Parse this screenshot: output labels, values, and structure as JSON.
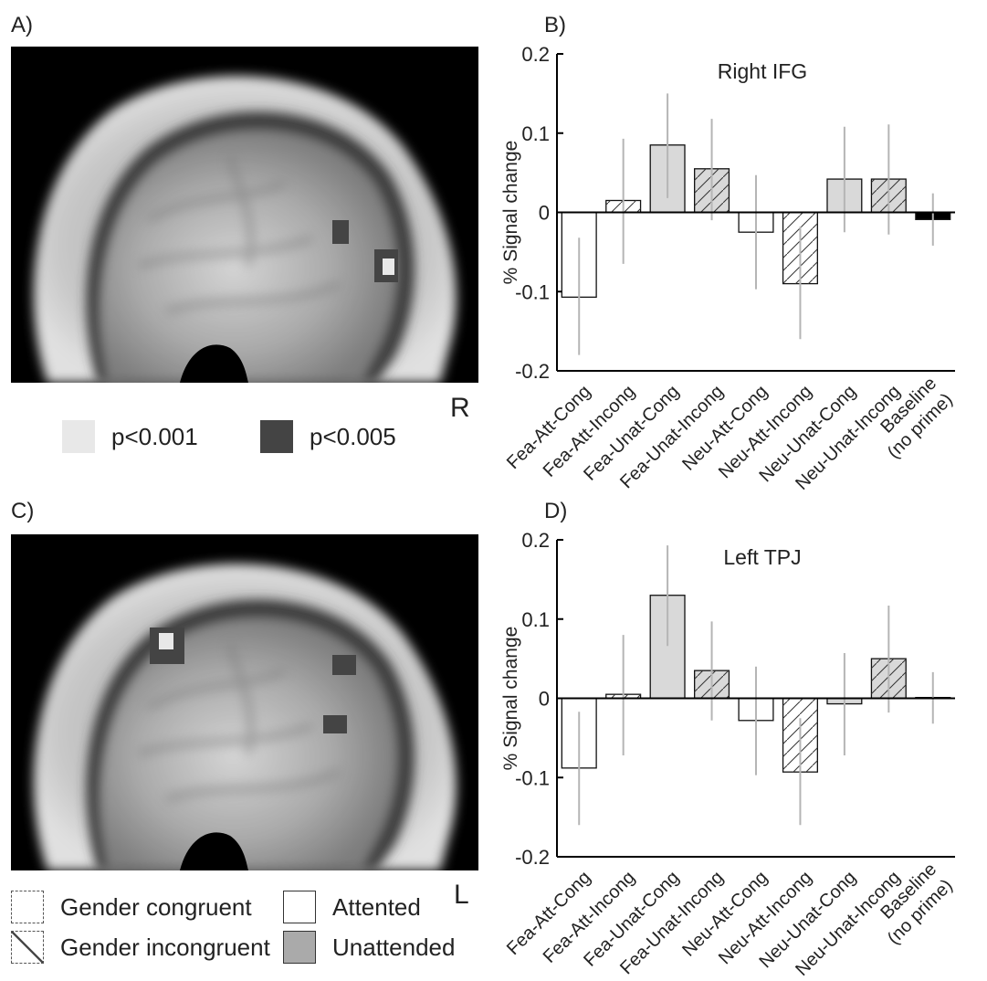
{
  "panels": {
    "a": "A)",
    "b": "B)",
    "c": "C)",
    "d": "D)"
  },
  "brain_top": {
    "side_label": "R",
    "legend": [
      {
        "label": "p<0.001",
        "color": "#e8e8e8"
      },
      {
        "label": "p<0.005",
        "color": "#444444"
      }
    ]
  },
  "brain_bottom": {
    "side_label": "L"
  },
  "legend": {
    "congruent": "Gender congruent",
    "incongruent": "Gender incongruent",
    "attended": "Attented",
    "unattended": "Unattended"
  },
  "colors": {
    "attended": "#ffffff",
    "unattended": "#d9d9d9",
    "baseline": "#000000",
    "error": "#b5b5b5"
  },
  "chart_data": [
    {
      "type": "bar",
      "title": "Right IFG",
      "ylabel": "% Signal change",
      "ylim": [
        -0.2,
        0.2
      ],
      "yticks": [
        "0.2",
        "0.1",
        "0",
        "-0.1",
        "-0.2"
      ],
      "categories": [
        "Fea-Att-Cong",
        "Fea-Att-Incong",
        "Fea-Unat-Cong",
        "Fea-Unat-Incong",
        "Neu-Att-Cong",
        "Neu-Att-Incong",
        "Neu-Unat-Cong",
        "Neu-Unat-Incong",
        "Baseline\n(no prime)"
      ],
      "fills": [
        "attended",
        "attended",
        "unattended",
        "unattended",
        "attended",
        "attended",
        "unattended",
        "unattended",
        "baseline"
      ],
      "hatched": [
        false,
        true,
        false,
        true,
        false,
        true,
        false,
        true,
        false
      ],
      "values": [
        -0.107,
        0.015,
        0.085,
        0.055,
        -0.025,
        -0.09,
        0.042,
        0.042,
        -0.009
      ],
      "error_low": [
        -0.18,
        -0.065,
        0.018,
        -0.01,
        -0.097,
        -0.16,
        -0.025,
        -0.028,
        -0.042
      ],
      "error_high": [
        -0.032,
        0.093,
        0.15,
        0.118,
        0.047,
        -0.018,
        0.108,
        0.111,
        0.024
      ]
    },
    {
      "type": "bar",
      "title": "Left TPJ",
      "ylabel": "% Signal change",
      "ylim": [
        -0.2,
        0.2
      ],
      "yticks": [
        "0.2",
        "0.1",
        "0",
        "-0.1",
        "-0.2"
      ],
      "categories": [
        "Fea-Att-Cong",
        "Fea-Att-Incong",
        "Fea-Unat-Cong",
        "Fea-Unat-Incong",
        "Neu-Att-Cong",
        "Neu-Att-Incong",
        "Neu-Unat-Cong",
        "Neu-Unat-Incong",
        "Baseline\n(no prime)"
      ],
      "fills": [
        "attended",
        "attended",
        "unattended",
        "unattended",
        "attended",
        "attended",
        "unattended",
        "unattended",
        "baseline"
      ],
      "hatched": [
        false,
        true,
        false,
        true,
        false,
        true,
        false,
        true,
        false
      ],
      "values": [
        -0.088,
        0.005,
        0.13,
        0.035,
        -0.028,
        -0.093,
        -0.007,
        0.05,
        0.001
      ],
      "error_low": [
        -0.16,
        -0.072,
        0.066,
        -0.028,
        -0.097,
        -0.16,
        -0.072,
        -0.018,
        -0.032
      ],
      "error_high": [
        -0.017,
        0.08,
        0.193,
        0.097,
        0.04,
        -0.025,
        0.057,
        0.117,
        0.033
      ]
    }
  ]
}
